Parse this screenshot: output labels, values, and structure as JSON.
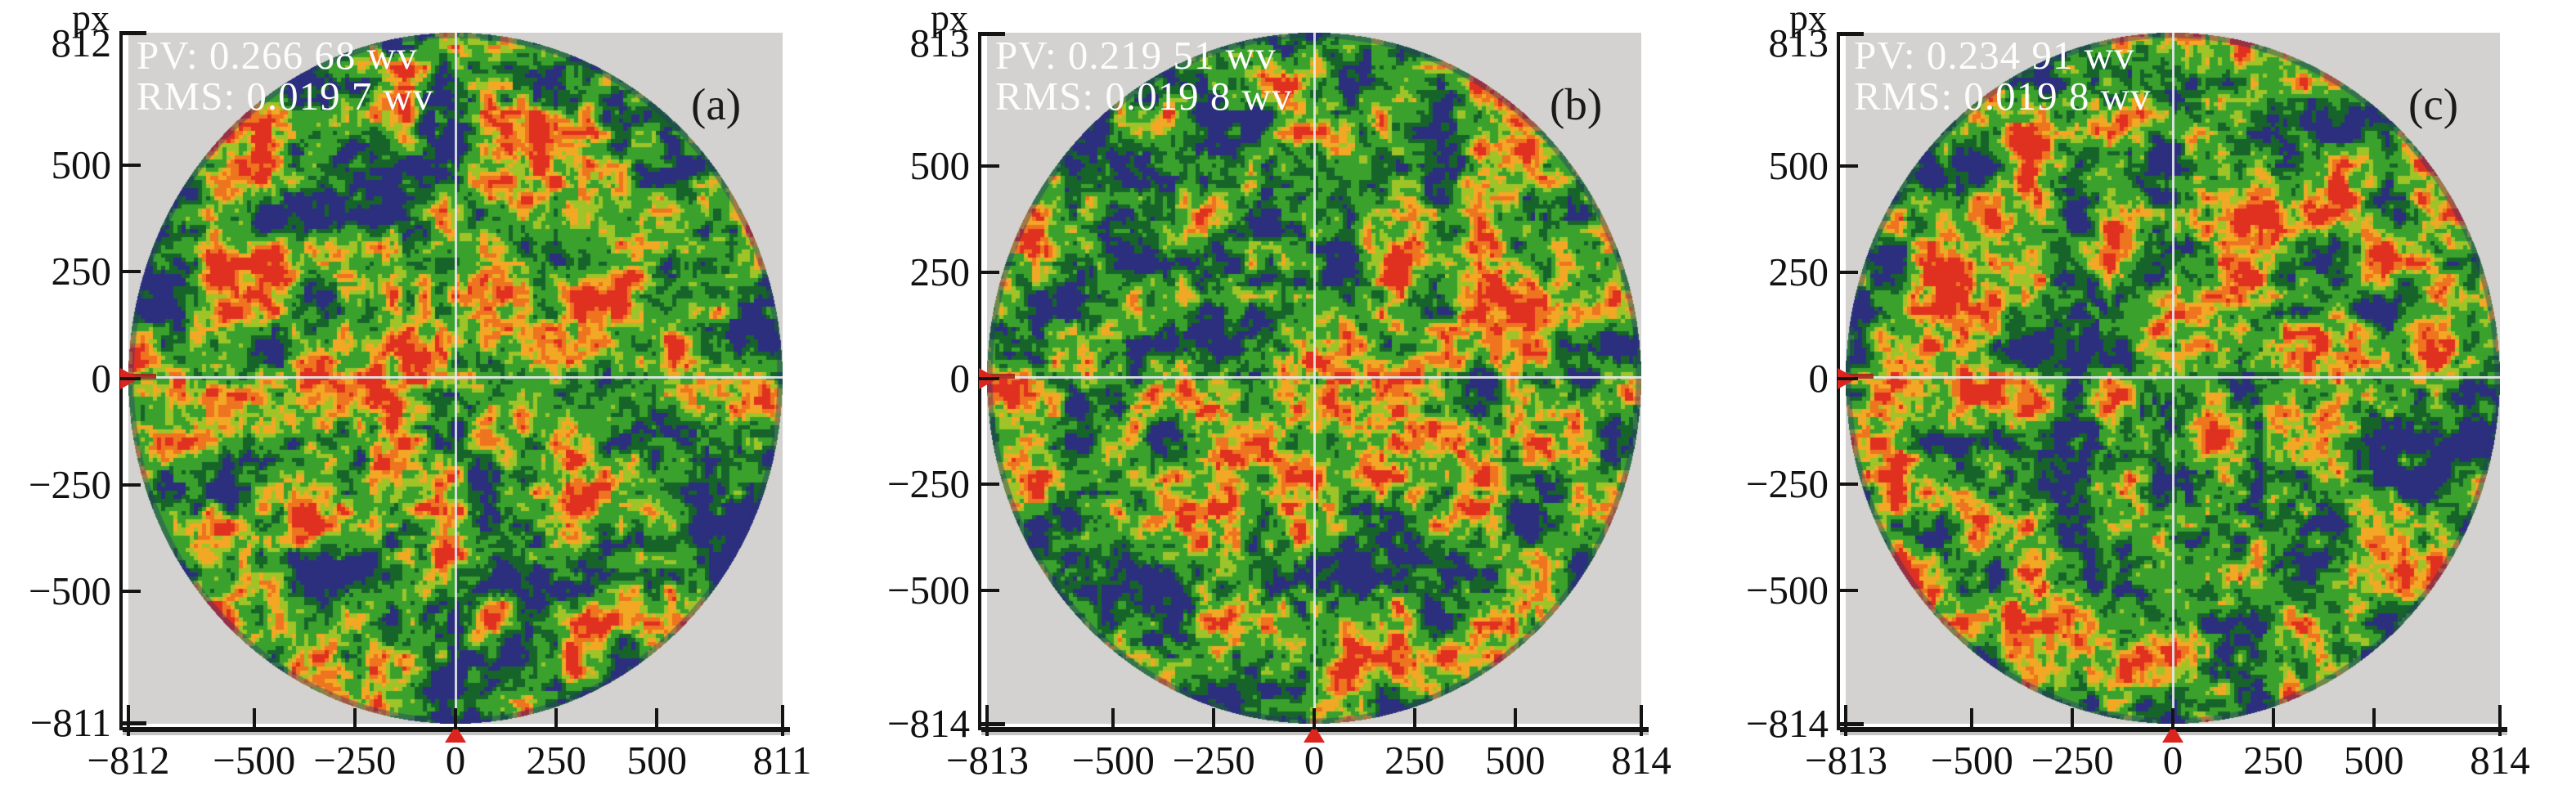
{
  "figure": {
    "description": "Three circular wavefront phase maps with PV/RMS annotations"
  },
  "colors": {
    "page_background": "#ffffff",
    "plot_background": "#d3d2d0",
    "axis": "#141414",
    "annotation_text": "#fdfdfd",
    "crosshair": "#e6eaf0",
    "marker_red": "#dc241f",
    "colormap": [
      "#2c2f7e",
      "#17642a",
      "#3aa22c",
      "#9ec428",
      "#f2a824",
      "#ee7420",
      "#e03020"
    ]
  },
  "panels": [
    {
      "id": "a",
      "corner_label": "(a)",
      "unit_label": "px",
      "pv_text": "PV: 0.266 68 wv",
      "rms_text": "RMS: 0.019 7 wv",
      "y_ticks": [
        {
          "label": "812",
          "value": 812
        },
        {
          "label": "500",
          "value": 500
        },
        {
          "label": "250",
          "value": 250
        },
        {
          "label": "0",
          "value": 0
        },
        {
          "label": "−250",
          "value": -250
        },
        {
          "label": "−500",
          "value": -500
        },
        {
          "label": "−811",
          "value": -811
        }
      ],
      "x_ticks": [
        {
          "label": "−812",
          "value": -812
        },
        {
          "label": "−500",
          "value": -500
        },
        {
          "label": "−250",
          "value": -250
        },
        {
          "label": "0",
          "value": 0
        },
        {
          "label": "250",
          "value": 250
        },
        {
          "label": "500",
          "value": 500
        },
        {
          "label": "811",
          "value": 811
        }
      ]
    },
    {
      "id": "b",
      "corner_label": "(b)",
      "unit_label": "px",
      "pv_text": "PV: 0.219 51 wv",
      "rms_text": "RMS: 0.019 8 wv",
      "y_ticks": [
        {
          "label": "813",
          "value": 813
        },
        {
          "label": "500",
          "value": 500
        },
        {
          "label": "250",
          "value": 250
        },
        {
          "label": "0",
          "value": 0
        },
        {
          "label": "−250",
          "value": -250
        },
        {
          "label": "−500",
          "value": -500
        },
        {
          "label": "−814",
          "value": -814
        }
      ],
      "x_ticks": [
        {
          "label": "−813",
          "value": -813
        },
        {
          "label": "−500",
          "value": -500
        },
        {
          "label": "−250",
          "value": -250
        },
        {
          "label": "0",
          "value": 0
        },
        {
          "label": "250",
          "value": 250
        },
        {
          "label": "500",
          "value": 500
        },
        {
          "label": "814",
          "value": 814
        }
      ]
    },
    {
      "id": "c",
      "corner_label": "(c)",
      "unit_label": "px",
      "pv_text": "PV: 0.234 91 wv",
      "rms_text": "RMS: 0.019 8 wv",
      "y_ticks": [
        {
          "label": "813",
          "value": 813
        },
        {
          "label": "500",
          "value": 500
        },
        {
          "label": "250",
          "value": 250
        },
        {
          "label": "0",
          "value": 0
        },
        {
          "label": "−250",
          "value": -250
        },
        {
          "label": "−500",
          "value": -500
        },
        {
          "label": "−814",
          "value": -814
        }
      ],
      "x_ticks": [
        {
          "label": "−813",
          "value": -813
        },
        {
          "label": "−500",
          "value": -500
        },
        {
          "label": "−250",
          "value": -250
        },
        {
          "label": "0",
          "value": 0
        },
        {
          "label": "250",
          "value": 250
        },
        {
          "label": "500",
          "value": 500
        },
        {
          "label": "814",
          "value": 814
        }
      ]
    }
  ],
  "chart_data": [
    {
      "type": "heatmap",
      "panel": "(a)",
      "pv_wv": 0.26668,
      "rms_wv": 0.0197,
      "axis_unit": "px",
      "x_ticks": [
        -812,
        -500,
        -250,
        0,
        250,
        500,
        811
      ],
      "y_ticks": [
        812,
        500,
        250,
        0,
        -250,
        -500,
        -811
      ],
      "xlim": [
        -812,
        811
      ],
      "ylim": [
        -811,
        812
      ],
      "shape": "circular aperture speckle map, crosshair at (0,0), red zero markers on left axis and bottom axis",
      "annotations": [
        "PV: 0.266 68 wv",
        "RMS: 0.019 7 wv"
      ],
      "palette_order_low_to_high": [
        "navy",
        "dark-green",
        "green",
        "yellow-green",
        "yellow-orange",
        "orange",
        "red"
      ]
    },
    {
      "type": "heatmap",
      "panel": "(b)",
      "pv_wv": 0.21951,
      "rms_wv": 0.0198,
      "axis_unit": "px",
      "x_ticks": [
        -813,
        -500,
        -250,
        0,
        250,
        500,
        814
      ],
      "y_ticks": [
        813,
        500,
        250,
        0,
        -250,
        -500,
        -814
      ],
      "xlim": [
        -813,
        814
      ],
      "ylim": [
        -814,
        813
      ],
      "shape": "circular aperture speckle map, crosshair at (0,0), red zero markers on left axis and bottom axis",
      "annotations": [
        "PV: 0.219 51 wv",
        "RMS: 0.019 8 wv"
      ],
      "palette_order_low_to_high": [
        "navy",
        "dark-green",
        "green",
        "yellow-green",
        "yellow-orange",
        "orange",
        "red"
      ]
    },
    {
      "type": "heatmap",
      "panel": "(c)",
      "pv_wv": 0.23491,
      "rms_wv": 0.0198,
      "axis_unit": "px",
      "x_ticks": [
        -813,
        -500,
        -250,
        0,
        250,
        500,
        814
      ],
      "y_ticks": [
        813,
        500,
        250,
        0,
        -250,
        -500,
        -814
      ],
      "xlim": [
        -813,
        814
      ],
      "ylim": [
        -814,
        813
      ],
      "shape": "circular aperture speckle map, crosshair at (0,0), red zero markers on left axis and bottom axis",
      "annotations": [
        "PV: 0.234 91 wv",
        "RMS: 0.019 8 wv"
      ],
      "palette_order_low_to_high": [
        "navy",
        "dark-green",
        "green",
        "yellow-green",
        "yellow-orange",
        "orange",
        "red"
      ]
    }
  ]
}
